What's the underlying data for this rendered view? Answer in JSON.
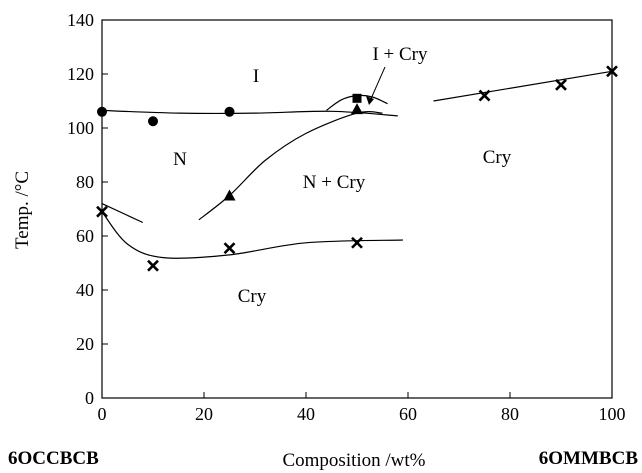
{
  "chart_data": {
    "type": "scatter",
    "title": "",
    "xlabel": "Composition /wt%",
    "ylabel": "Temp. /°C",
    "xlim": [
      0,
      100
    ],
    "ylim": [
      0,
      140
    ],
    "x_ticks": [
      0,
      20,
      40,
      60,
      80,
      100
    ],
    "y_ticks": [
      0,
      20,
      40,
      60,
      80,
      100,
      120,
      140
    ],
    "grid": false,
    "compound_left": "6OCCBCB",
    "compound_right": "6OMMBCB",
    "region_labels": {
      "I": "I",
      "I_Cry": "I + Cry",
      "N": "N",
      "N_Cry": "N + Cry",
      "Cry_left": "Cry",
      "Cry_right": "Cry"
    },
    "series": [
      {
        "marker": "circle",
        "x": [
          0,
          10,
          25
        ],
        "y": [
          106,
          102.5,
          106
        ]
      },
      {
        "marker": "square",
        "x": [
          50
        ],
        "y": [
          111
        ]
      },
      {
        "marker": "triangle",
        "x": [
          25,
          50
        ],
        "y": [
          75,
          107
        ]
      },
      {
        "marker": "cross",
        "x": [
          0,
          10,
          25,
          50,
          75,
          90,
          100
        ],
        "y": [
          69,
          49,
          55.5,
          57.5,
          112,
          116,
          121
        ]
      }
    ],
    "curves": [
      {
        "kind": "line",
        "x": [
          0,
          8
        ],
        "y": [
          72,
          65
        ]
      },
      {
        "kind": "line",
        "x": [
          65,
          100
        ],
        "y": [
          110,
          121
        ]
      },
      {
        "kind": "curve",
        "x": [
          0,
          15,
          30,
          45,
          58
        ],
        "y": [
          106.5,
          105.5,
          105.5,
          106.2,
          104.5
        ]
      },
      {
        "kind": "curve",
        "x": [
          44,
          47,
          50,
          53,
          56
        ],
        "y": [
          106.5,
          110.5,
          112,
          111.5,
          109
        ]
      },
      {
        "kind": "curve",
        "x": [
          19,
          25,
          32,
          40,
          50,
          55
        ],
        "y": [
          66,
          75,
          88,
          98,
          105.5,
          105.5
        ]
      },
      {
        "kind": "curve",
        "x": [
          0,
          5,
          12,
          25,
          40,
          59
        ],
        "y": [
          69,
          57,
          52,
          53,
          57.5,
          58.5
        ]
      }
    ]
  }
}
